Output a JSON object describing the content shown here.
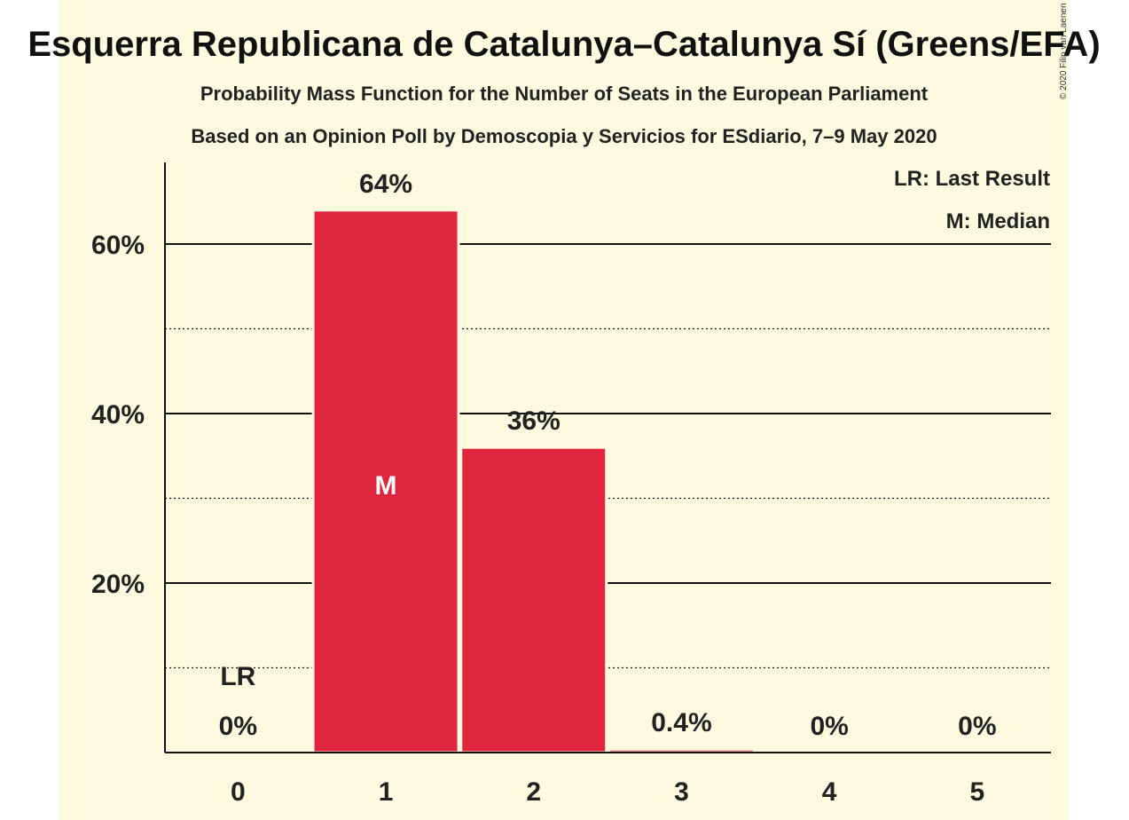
{
  "title": "Esquerra Republicana de Catalunya–Catalunya Sí (Greens/EFA)",
  "subtitle1": "Probability Mass Function for the Number of Seats in the European Parliament",
  "subtitle2": "Based on an Opinion Poll by Demoscopia y Servicios for ESdiario, 7–9 May 2020",
  "legend": {
    "last_result": "LR: Last Result",
    "median": "M: Median"
  },
  "credit": "© 2020 Filip van Laenen",
  "colors": {
    "bar": "#e0263f",
    "background": "#fefae0"
  },
  "chart_data": {
    "type": "bar",
    "categories": [
      "0",
      "1",
      "2",
      "3",
      "4",
      "5"
    ],
    "values": [
      0,
      64,
      36,
      0.4,
      0,
      0
    ],
    "labels": [
      "0%",
      "64%",
      "36%",
      "0.4%",
      "0%",
      "0%"
    ],
    "ylim": [
      0,
      70
    ],
    "yticks": [
      {
        "value": 20,
        "label": "20%"
      },
      {
        "value": 40,
        "label": "40%"
      },
      {
        "value": 60,
        "label": "60%"
      }
    ],
    "minor_gridlines": [
      10,
      30,
      50
    ],
    "median_index": 1,
    "median_marker": "M",
    "last_result_index": 0,
    "last_result_marker": "LR",
    "grid": true
  }
}
